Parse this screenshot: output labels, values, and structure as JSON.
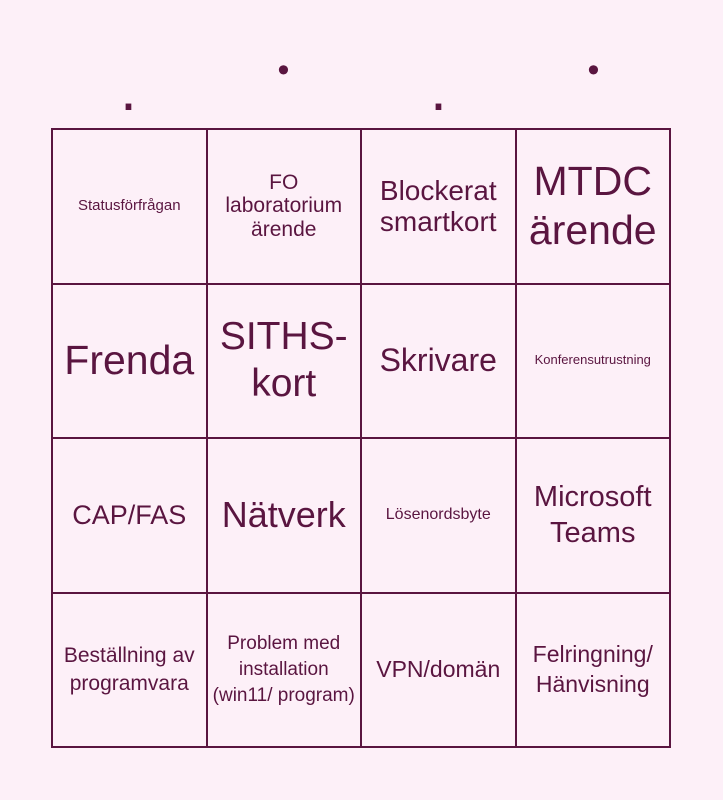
{
  "header": {
    "letters": [
      ".",
      "•",
      ".",
      "•"
    ]
  },
  "cells": [
    "Statusförfrågan",
    "FO laboratorium ärende",
    "Blockerat smartkort",
    "MTDC ärende",
    "Frenda",
    "SITHS-kort",
    "Skrivare",
    "Konferensutrustning",
    "CAP/FAS",
    "Nätverk",
    "Lösenordsbyte",
    "Microsoft Teams",
    "Beställning av programvara",
    "Problem med installation (win11/ program)",
    "VPN/domän",
    "Felringning/ Hänvisning"
  ],
  "colors": {
    "background": "#fdf0f8",
    "text": "#5a1540",
    "border": "#5a1540"
  }
}
